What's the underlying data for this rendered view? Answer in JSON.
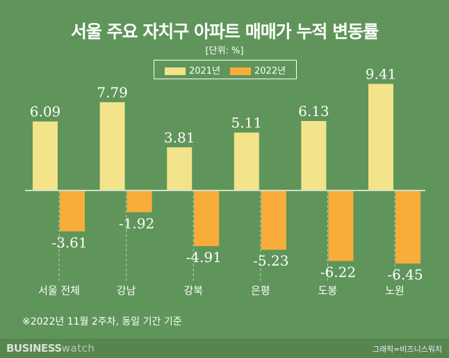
{
  "chart_data": {
    "type": "bar",
    "title": "서울 주요 자치구 아파트 매매가 누적 변동률",
    "subtitle": "[단위: %]",
    "categories": [
      "서울 전체",
      "강남",
      "강북",
      "은평",
      "도봉",
      "노원"
    ],
    "series": [
      {
        "name": "2021년",
        "color": "#f3e38a",
        "values": [
          6.09,
          7.79,
          3.81,
          5.11,
          6.13,
          9.41
        ]
      },
      {
        "name": "2022년",
        "color": "#f8ad3a",
        "values": [
          -3.61,
          -1.92,
          -4.91,
          -5.23,
          -6.22,
          -6.45
        ]
      }
    ],
    "legend": "top-center",
    "grid": false,
    "note": "※2022년 11월 2주차, 동일 기간 기준"
  },
  "footer": {
    "logo": "BUSINESS watch",
    "logo_bold": "BUSINESS",
    "logo_light": "watch",
    "credit": "그래픽=비즈니스워치"
  }
}
